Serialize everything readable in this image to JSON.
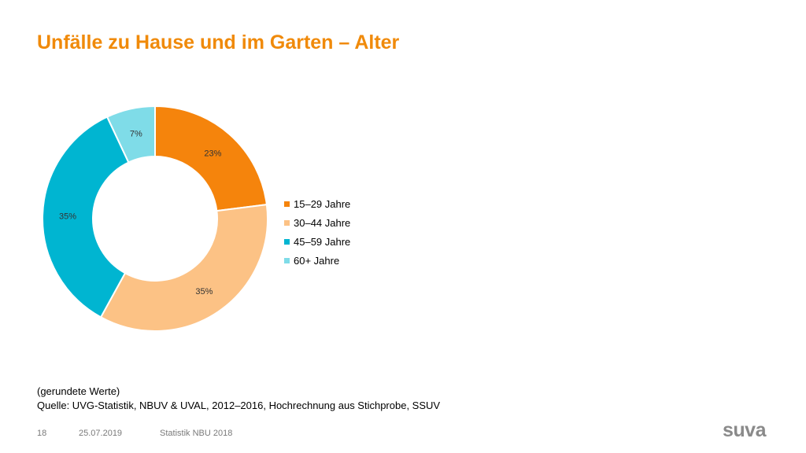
{
  "page": {
    "title": "Unfälle zu Hause und im Garten – Alter",
    "note_1": "(gerundete Werte)",
    "note_2": "Quelle: UVG-Statistik, NBUV & UVAL, 2012–2016, Hochrechnung aus Stichprobe, SSUV",
    "footer": {
      "page_number": "18",
      "date": "25.07.2019",
      "source": "Statistik NBU 2018",
      "logo_text": "suva"
    }
  },
  "chart_data": {
    "type": "pie",
    "variant": "donut",
    "legend_position": "right",
    "categories": [
      "15–29 Jahre",
      "30–44 Jahre",
      "45–59 Jahre",
      "60+ Jahre"
    ],
    "values": [
      23,
      35,
      35,
      7
    ],
    "labels": [
      "23%",
      "35%",
      "35%",
      "7%"
    ],
    "colors": [
      "#f5840c",
      "#fcc285",
      "#00b5d1",
      "#7fdce8"
    ],
    "label_color": "#333333"
  }
}
